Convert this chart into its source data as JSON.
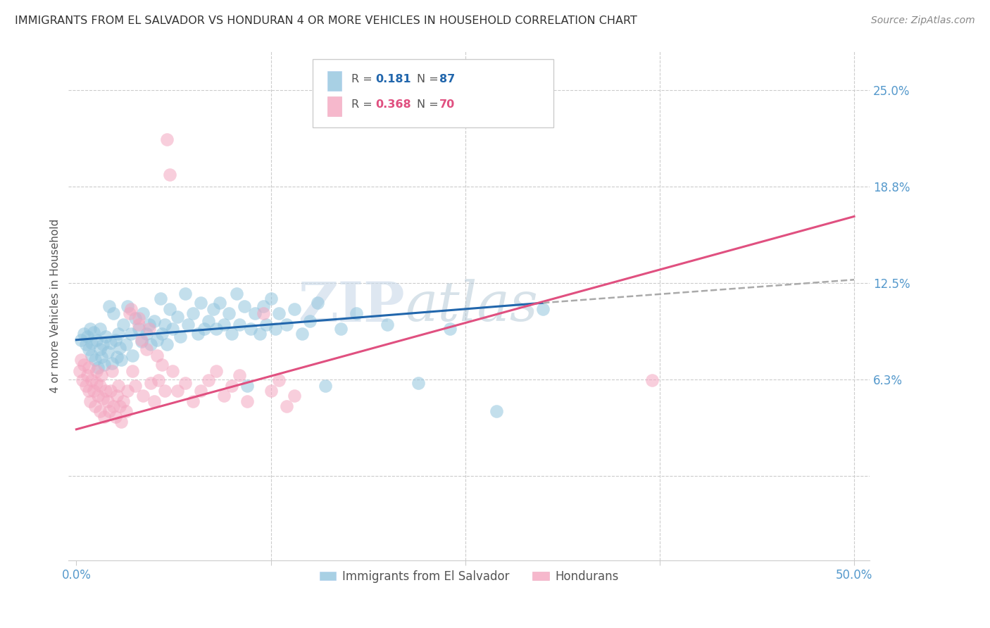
{
  "title": "IMMIGRANTS FROM EL SALVADOR VS HONDURAN 4 OR MORE VEHICLES IN HOUSEHOLD CORRELATION CHART",
  "source": "Source: ZipAtlas.com",
  "ylabel": "4 or more Vehicles in Household",
  "x_ticks": [
    0.0,
    0.125,
    0.25,
    0.375,
    0.5
  ],
  "x_tick_labels": [
    "0.0%",
    "",
    "",
    "",
    "50.0%"
  ],
  "y_ticks": [
    0.0,
    0.0625,
    0.125,
    0.1875,
    0.25
  ],
  "y_tick_labels_right": [
    "",
    "6.3%",
    "12.5%",
    "18.8%",
    "25.0%"
  ],
  "xlim": [
    -0.005,
    0.51
  ],
  "ylim": [
    -0.055,
    0.275
  ],
  "legend_label1": "Immigrants from El Salvador",
  "legend_label2": "Hondurans",
  "watermark": "ZIPatlas",
  "blue_color": "#92c5de",
  "pink_color": "#f4a6c0",
  "blue_line_color": "#2166ac",
  "pink_line_color": "#e05080",
  "dashed_line_color": "#aaaaaa",
  "grid_color": "#cccccc",
  "title_color": "#333333",
  "axis_label_color": "#555555",
  "right_tick_color": "#5599cc",
  "blue_scatter": [
    [
      0.003,
      0.088
    ],
    [
      0.005,
      0.092
    ],
    [
      0.006,
      0.085
    ],
    [
      0.007,
      0.09
    ],
    [
      0.008,
      0.082
    ],
    [
      0.009,
      0.095
    ],
    [
      0.01,
      0.078
    ],
    [
      0.01,
      0.086
    ],
    [
      0.011,
      0.093
    ],
    [
      0.012,
      0.075
    ],
    [
      0.013,
      0.088
    ],
    [
      0.014,
      0.07
    ],
    [
      0.015,
      0.082
    ],
    [
      0.015,
      0.095
    ],
    [
      0.016,
      0.077
    ],
    [
      0.017,
      0.085
    ],
    [
      0.018,
      0.072
    ],
    [
      0.019,
      0.09
    ],
    [
      0.02,
      0.08
    ],
    [
      0.021,
      0.11
    ],
    [
      0.022,
      0.086
    ],
    [
      0.023,
      0.073
    ],
    [
      0.024,
      0.105
    ],
    [
      0.025,
      0.088
    ],
    [
      0.026,
      0.077
    ],
    [
      0.027,
      0.092
    ],
    [
      0.028,
      0.083
    ],
    [
      0.029,
      0.075
    ],
    [
      0.03,
      0.098
    ],
    [
      0.032,
      0.085
    ],
    [
      0.033,
      0.11
    ],
    [
      0.035,
      0.092
    ],
    [
      0.036,
      0.078
    ],
    [
      0.038,
      0.102
    ],
    [
      0.04,
      0.095
    ],
    [
      0.042,
      0.087
    ],
    [
      0.043,
      0.105
    ],
    [
      0.045,
      0.092
    ],
    [
      0.047,
      0.098
    ],
    [
      0.048,
      0.085
    ],
    [
      0.05,
      0.1
    ],
    [
      0.052,
      0.088
    ],
    [
      0.054,
      0.115
    ],
    [
      0.055,
      0.092
    ],
    [
      0.057,
      0.098
    ],
    [
      0.058,
      0.085
    ],
    [
      0.06,
      0.108
    ],
    [
      0.062,
      0.095
    ],
    [
      0.065,
      0.103
    ],
    [
      0.067,
      0.09
    ],
    [
      0.07,
      0.118
    ],
    [
      0.072,
      0.098
    ],
    [
      0.075,
      0.105
    ],
    [
      0.078,
      0.092
    ],
    [
      0.08,
      0.112
    ],
    [
      0.082,
      0.095
    ],
    [
      0.085,
      0.1
    ],
    [
      0.088,
      0.108
    ],
    [
      0.09,
      0.095
    ],
    [
      0.092,
      0.112
    ],
    [
      0.095,
      0.098
    ],
    [
      0.098,
      0.105
    ],
    [
      0.1,
      0.092
    ],
    [
      0.103,
      0.118
    ],
    [
      0.105,
      0.098
    ],
    [
      0.108,
      0.11
    ],
    [
      0.11,
      0.058
    ],
    [
      0.112,
      0.095
    ],
    [
      0.115,
      0.105
    ],
    [
      0.118,
      0.092
    ],
    [
      0.12,
      0.11
    ],
    [
      0.122,
      0.098
    ],
    [
      0.125,
      0.115
    ],
    [
      0.128,
      0.095
    ],
    [
      0.13,
      0.105
    ],
    [
      0.135,
      0.098
    ],
    [
      0.14,
      0.108
    ],
    [
      0.145,
      0.092
    ],
    [
      0.15,
      0.1
    ],
    [
      0.155,
      0.112
    ],
    [
      0.16,
      0.058
    ],
    [
      0.17,
      0.095
    ],
    [
      0.18,
      0.105
    ],
    [
      0.2,
      0.098
    ],
    [
      0.22,
      0.06
    ],
    [
      0.24,
      0.095
    ],
    [
      0.27,
      0.042
    ],
    [
      0.3,
      0.108
    ]
  ],
  "pink_scatter": [
    [
      0.002,
      0.068
    ],
    [
      0.003,
      0.075
    ],
    [
      0.004,
      0.062
    ],
    [
      0.005,
      0.072
    ],
    [
      0.006,
      0.058
    ],
    [
      0.007,
      0.065
    ],
    [
      0.008,
      0.055
    ],
    [
      0.008,
      0.07
    ],
    [
      0.009,
      0.048
    ],
    [
      0.01,
      0.062
    ],
    [
      0.011,
      0.055
    ],
    [
      0.012,
      0.045
    ],
    [
      0.013,
      0.06
    ],
    [
      0.013,
      0.068
    ],
    [
      0.014,
      0.052
    ],
    [
      0.015,
      0.042
    ],
    [
      0.015,
      0.058
    ],
    [
      0.016,
      0.065
    ],
    [
      0.017,
      0.05
    ],
    [
      0.018,
      0.038
    ],
    [
      0.019,
      0.055
    ],
    [
      0.02,
      0.048
    ],
    [
      0.021,
      0.042
    ],
    [
      0.022,
      0.055
    ],
    [
      0.023,
      0.068
    ],
    [
      0.024,
      0.045
    ],
    [
      0.025,
      0.038
    ],
    [
      0.026,
      0.052
    ],
    [
      0.027,
      0.058
    ],
    [
      0.028,
      0.045
    ],
    [
      0.029,
      0.035
    ],
    [
      0.03,
      0.048
    ],
    [
      0.032,
      0.042
    ],
    [
      0.033,
      0.055
    ],
    [
      0.034,
      0.105
    ],
    [
      0.035,
      0.108
    ],
    [
      0.036,
      0.068
    ],
    [
      0.038,
      0.058
    ],
    [
      0.04,
      0.098
    ],
    [
      0.04,
      0.102
    ],
    [
      0.042,
      0.088
    ],
    [
      0.043,
      0.052
    ],
    [
      0.045,
      0.082
    ],
    [
      0.047,
      0.095
    ],
    [
      0.048,
      0.06
    ],
    [
      0.05,
      0.048
    ],
    [
      0.052,
      0.078
    ],
    [
      0.053,
      0.062
    ],
    [
      0.055,
      0.072
    ],
    [
      0.057,
      0.055
    ],
    [
      0.058,
      0.218
    ],
    [
      0.06,
      0.195
    ],
    [
      0.062,
      0.068
    ],
    [
      0.065,
      0.055
    ],
    [
      0.07,
      0.06
    ],
    [
      0.075,
      0.048
    ],
    [
      0.08,
      0.055
    ],
    [
      0.085,
      0.062
    ],
    [
      0.09,
      0.068
    ],
    [
      0.095,
      0.052
    ],
    [
      0.1,
      0.058
    ],
    [
      0.105,
      0.065
    ],
    [
      0.11,
      0.048
    ],
    [
      0.12,
      0.105
    ],
    [
      0.125,
      0.055
    ],
    [
      0.13,
      0.062
    ],
    [
      0.135,
      0.045
    ],
    [
      0.14,
      0.052
    ],
    [
      0.37,
      0.062
    ]
  ],
  "blue_line": [
    [
      0.0,
      0.088
    ],
    [
      0.3,
      0.112
    ]
  ],
  "pink_line": [
    [
      0.0,
      0.03
    ],
    [
      0.5,
      0.168
    ]
  ],
  "blue_dash_line": [
    [
      0.3,
      0.112
    ],
    [
      0.5,
      0.127
    ]
  ]
}
